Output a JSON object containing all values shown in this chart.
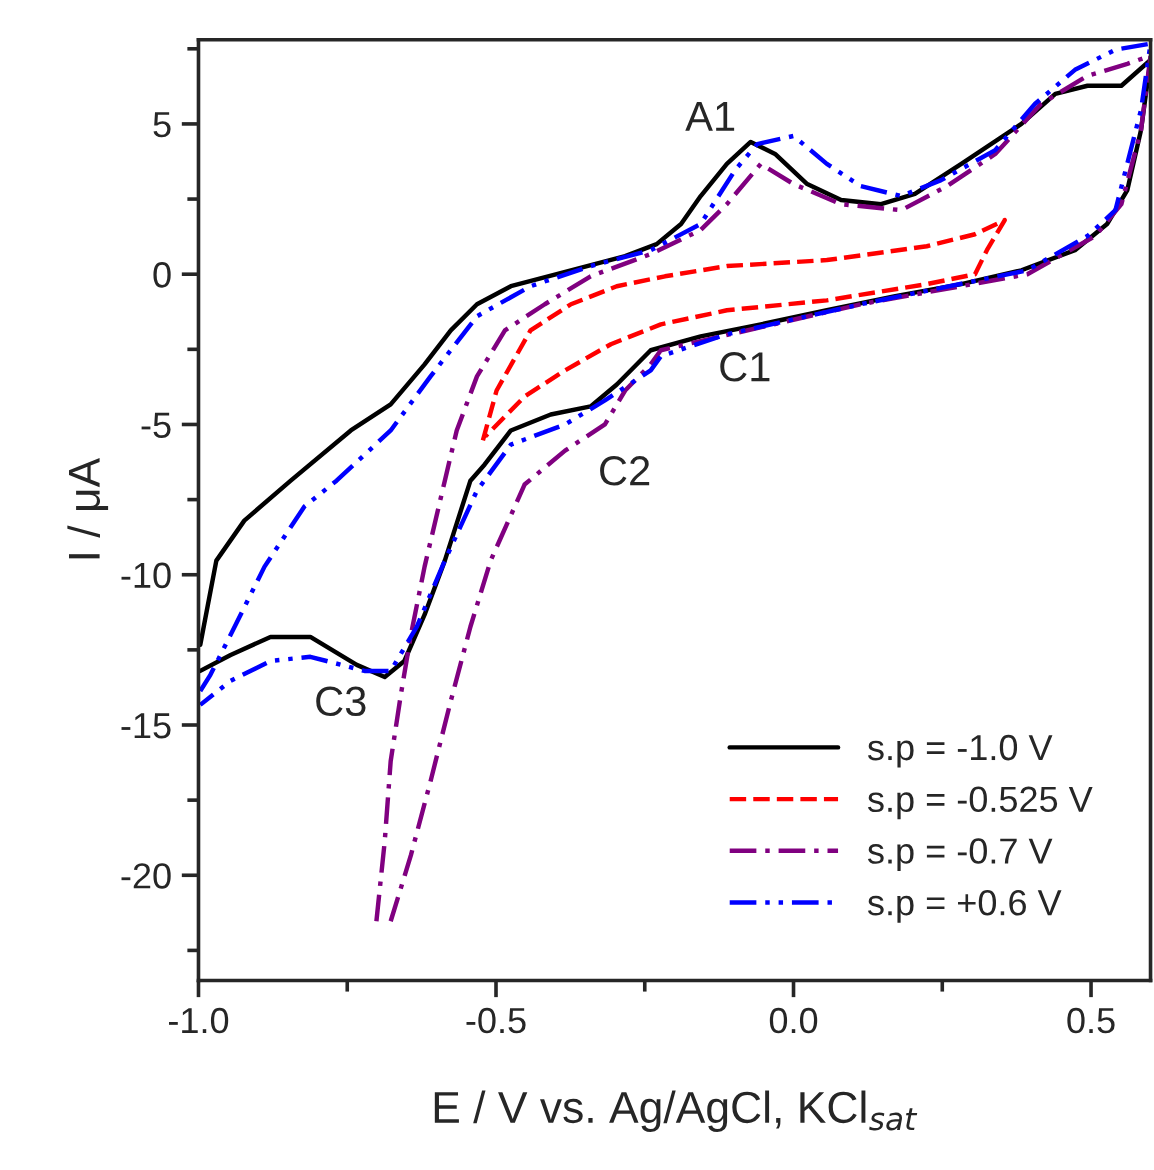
{
  "chart_data": {
    "type": "line",
    "xlabel": "E / V vs. Ag/AgCl, KCl$_{sat}$",
    "ylabel": "I / μA",
    "xlim": [
      -1.0,
      0.6
    ],
    "ylim": [
      -23.5,
      7.8
    ],
    "xticks": [
      {
        "value": -1.0,
        "label": "-1.0"
      },
      {
        "value": -0.5,
        "label": "-0.5"
      },
      {
        "value": 0.0,
        "label": "0.0"
      },
      {
        "value": 0.5,
        "label": "0.5"
      }
    ],
    "yticks": [
      {
        "value": -20,
        "label": "-20"
      },
      {
        "value": -15,
        "label": "-15"
      },
      {
        "value": -10,
        "label": "-10"
      },
      {
        "value": -5,
        "label": "-5"
      },
      0,
      5
    ],
    "grid": false,
    "legend": "bottom right",
    "annotations": [
      {
        "text": "A1",
        "x": -0.072,
        "y": 4.4
      },
      {
        "text": "C1",
        "x": -0.055,
        "y": -1.67
      },
      {
        "text": "C2",
        "x": -0.341,
        "y": -4.4
      },
      {
        "text": "C3",
        "x": -0.687,
        "y": -13.4
      }
    ],
    "series": [
      {
        "name": "s.p = -1.0 V",
        "color": "#000000",
        "line_style": "solid",
        "x": [
          -0.997,
          -0.97,
          -0.923,
          -0.845,
          -0.744,
          -0.677,
          -0.62,
          -0.576,
          -0.532,
          -0.475,
          -0.398,
          -0.283,
          -0.23,
          -0.189,
          -0.156,
          -0.112,
          -0.072,
          -0.031,
          0.023,
          0.08,
          0.147,
          0.204,
          0.282,
          0.383,
          0.44,
          0.494,
          0.551,
          0.6,
          0.584,
          0.561,
          0.527,
          0.473,
          0.383,
          0.282,
          0.171,
          0.056,
          -0.055,
          -0.156,
          -0.24,
          -0.297,
          -0.341,
          -0.408,
          -0.475,
          -0.519,
          -0.543,
          -0.586,
          -0.62,
          -0.654,
          -0.687,
          -0.734,
          -0.812,
          -0.879,
          -0.946,
          -0.997
        ],
        "values": [
          -12.33,
          -9.53,
          -8.2,
          -6.87,
          -5.2,
          -4.33,
          -3.0,
          -1.87,
          -1.0,
          -0.4,
          0.0,
          0.6,
          1.0,
          1.67,
          2.6,
          3.67,
          4.4,
          4.0,
          3.0,
          2.47,
          2.33,
          2.67,
          3.67,
          5.0,
          6.0,
          6.27,
          6.27,
          7.13,
          4.8,
          2.8,
          1.67,
          0.8,
          0.13,
          -0.33,
          -0.73,
          -1.2,
          -1.67,
          -2.07,
          -2.53,
          -3.67,
          -4.4,
          -4.67,
          -5.2,
          -6.33,
          -6.87,
          -9.53,
          -11.33,
          -12.87,
          -13.4,
          -13.0,
          -12.07,
          -12.07,
          -12.67,
          -13.2
        ]
      },
      {
        "name": "s.p = -0.525 V",
        "color": "#ff0000",
        "line_style": "dashed",
        "x": [
          -0.522,
          -0.499,
          -0.442,
          -0.374,
          -0.297,
          -0.216,
          -0.112,
          0.056,
          0.224,
          0.305,
          0.355,
          0.325,
          0.305,
          0.224,
          0.056,
          -0.112,
          -0.223,
          -0.307,
          -0.384,
          -0.452,
          -0.518
        ],
        "values": [
          -5.53,
          -3.87,
          -1.87,
          -1.0,
          -0.4,
          -0.07,
          0.27,
          0.47,
          0.93,
          1.33,
          1.8,
          0.8,
          0.0,
          -0.33,
          -0.87,
          -1.2,
          -1.67,
          -2.33,
          -3.2,
          -4.07,
          -5.4
        ]
      },
      {
        "name": "s.p = -0.7 V",
        "color": "#800080",
        "line_style": "dashdot",
        "x": [
          -0.701,
          -0.687,
          -0.677,
          -0.66,
          -0.643,
          -0.62,
          -0.586,
          -0.566,
          -0.532,
          -0.485,
          -0.418,
          -0.341,
          -0.24,
          -0.156,
          -0.112,
          -0.055,
          0.0,
          0.08,
          0.181,
          0.258,
          0.339,
          0.416,
          0.494,
          0.561,
          0.6,
          0.584,
          0.551,
          0.507,
          0.393,
          0.113,
          -0.223,
          -0.24,
          -0.283,
          -0.317,
          -0.384,
          -0.452,
          -0.509,
          -0.543,
          -0.576,
          -0.61,
          -0.643,
          -0.677
        ],
        "values": [
          -21.53,
          -18.87,
          -16.2,
          -14.0,
          -12.0,
          -9.73,
          -6.87,
          -5.2,
          -3.4,
          -1.87,
          -1.0,
          -0.07,
          0.67,
          1.47,
          2.33,
          3.67,
          3.0,
          2.33,
          2.13,
          2.93,
          4.0,
          5.67,
          6.6,
          7.0,
          7.27,
          4.8,
          2.33,
          1.27,
          0.0,
          -1.0,
          -2.53,
          -3.0,
          -3.87,
          -5.0,
          -5.87,
          -7.0,
          -9.53,
          -11.73,
          -14.2,
          -16.87,
          -19.33,
          -21.53
        ]
      },
      {
        "name": "s.p = +0.6 V",
        "color": "#0000ff",
        "line_style": "dashdotdot",
        "x": [
          -0.997,
          -0.98,
          -0.946,
          -0.889,
          -0.822,
          -0.768,
          -0.677,
          -0.61,
          -0.532,
          -0.442,
          -0.341,
          -0.24,
          -0.156,
          -0.098,
          -0.061,
          0.0,
          0.056,
          0.113,
          0.181,
          0.248,
          0.339,
          0.406,
          0.473,
          0.541,
          0.6,
          0.584,
          0.541,
          0.494,
          0.393,
          0.113,
          -0.112,
          -0.223,
          -0.24,
          -0.317,
          -0.384,
          -0.475,
          -0.532,
          -0.586,
          -0.633,
          -0.677,
          -0.721,
          -0.812,
          -0.879,
          -0.946,
          -0.997
        ],
        "values": [
          -13.87,
          -13.33,
          -12.0,
          -9.73,
          -7.73,
          -6.87,
          -5.2,
          -3.4,
          -1.4,
          -0.4,
          0.27,
          0.8,
          1.67,
          3.47,
          4.33,
          4.6,
          3.67,
          2.93,
          2.6,
          3.13,
          4.13,
          5.67,
          6.8,
          7.47,
          7.67,
          5.47,
          2.13,
          1.27,
          0.13,
          -1.0,
          -2.0,
          -2.73,
          -3.2,
          -4.2,
          -5.0,
          -5.67,
          -7.2,
          -9.53,
          -11.73,
          -13.2,
          -13.2,
          -12.73,
          -12.87,
          -13.53,
          -14.33
        ]
      }
    ]
  }
}
